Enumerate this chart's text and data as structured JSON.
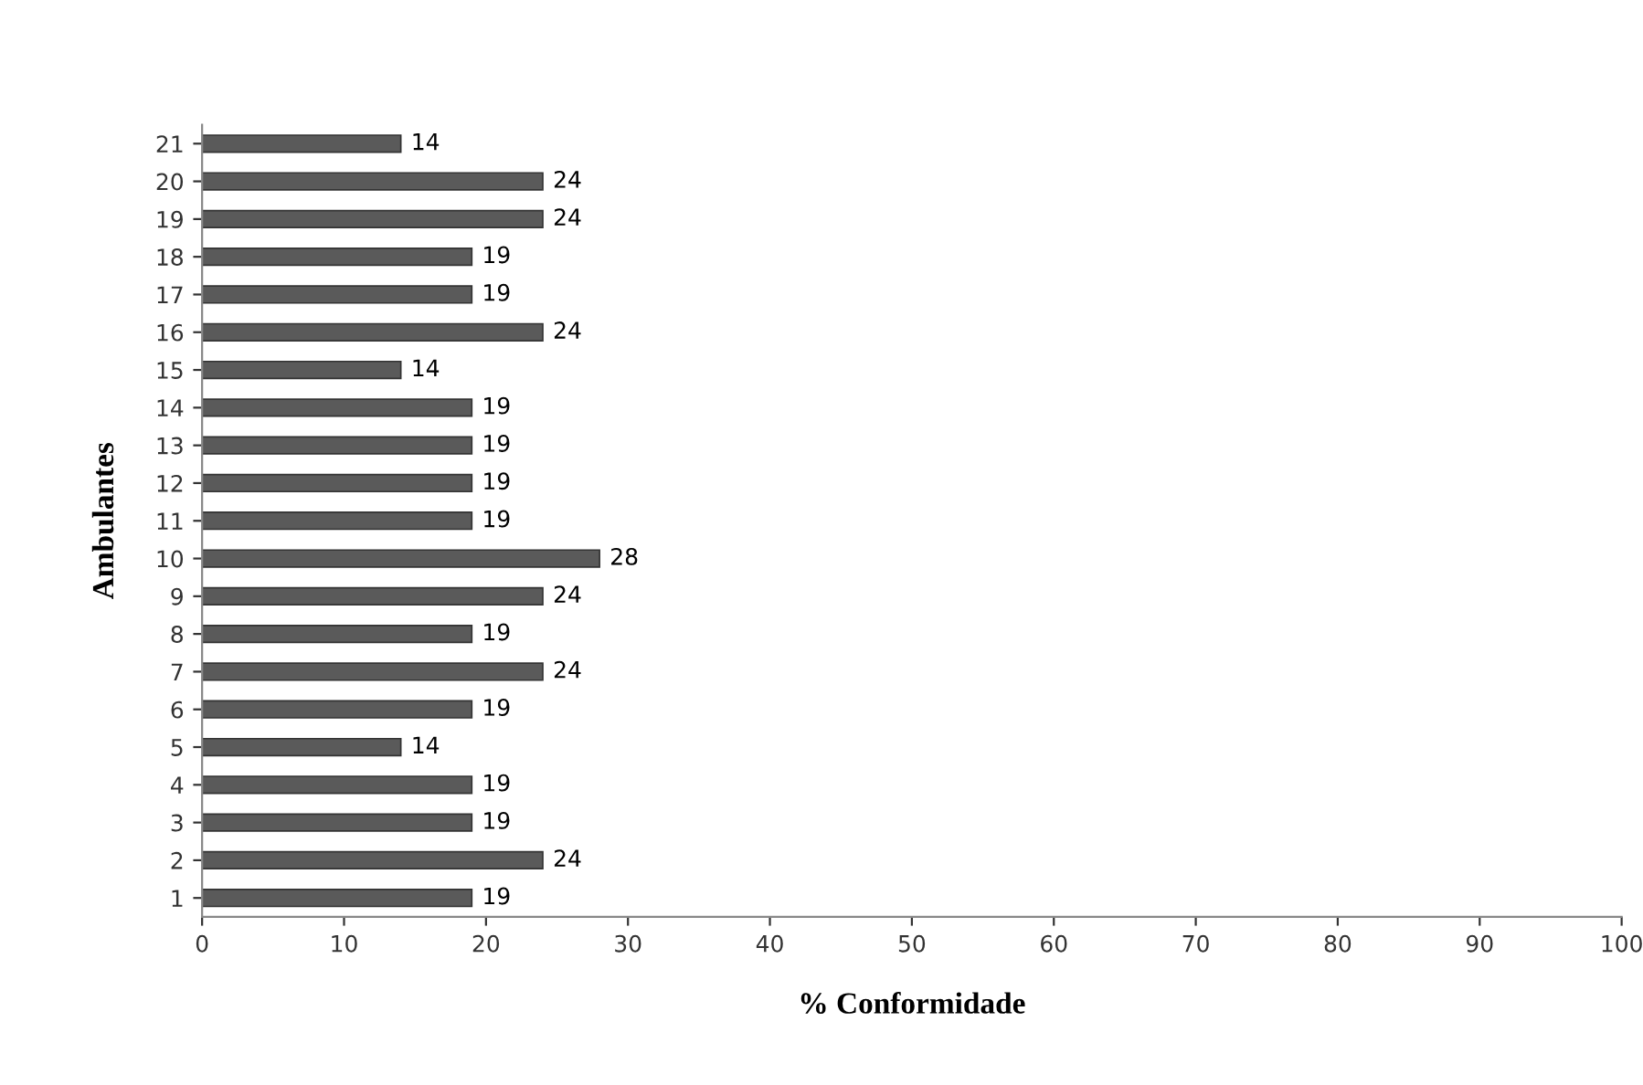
{
  "chart_data": {
    "type": "bar",
    "orientation": "horizontal",
    "xlabel": "% Conformidade",
    "ylabel": "Ambulantes",
    "categories": [
      "21",
      "20",
      "19",
      "18",
      "17",
      "16",
      "15",
      "14",
      "13",
      "12",
      "11",
      "10",
      "9",
      "8",
      "7",
      "6",
      "5",
      "4",
      "3",
      "2",
      "1"
    ],
    "values": [
      14,
      24,
      24,
      19,
      19,
      24,
      14,
      19,
      19,
      19,
      19,
      28,
      24,
      19,
      24,
      19,
      14,
      19,
      19,
      24,
      19
    ],
    "color": "#5a5a5a",
    "data_labels": true,
    "xlim": [
      0,
      100
    ],
    "xticks": [
      0,
      10,
      20,
      30,
      40,
      50,
      60,
      70,
      80,
      90,
      100
    ],
    "grid": false,
    "legend": false
  }
}
